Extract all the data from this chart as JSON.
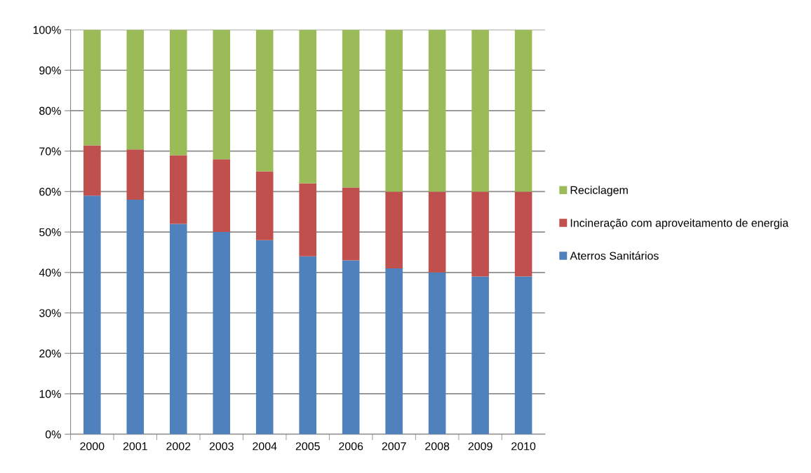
{
  "chart_data": {
    "type": "bar",
    "stacked": true,
    "categories": [
      "2000",
      "2001",
      "2002",
      "2003",
      "2004",
      "2005",
      "2006",
      "2007",
      "2008",
      "2009",
      "2010"
    ],
    "series": [
      {
        "name": "Aterros Sanitários",
        "color": "#4f81bd",
        "values": [
          59,
          58,
          52,
          50,
          48,
          44,
          43,
          41,
          40,
          39,
          39
        ]
      },
      {
        "name": "Incineração com aproveitamento de energia",
        "color": "#c0504d",
        "values": [
          12.4,
          12.4,
          17,
          18,
          17,
          18,
          18,
          19,
          20,
          21,
          21
        ]
      },
      {
        "name": "Reciclagem",
        "color": "#9bbb59",
        "values": [
          28.6,
          29.6,
          31,
          32,
          35,
          38,
          39,
          40,
          40,
          40,
          40
        ]
      }
    ],
    "ylim": [
      0,
      100
    ],
    "yticks": [
      {
        "value": 0,
        "label": "0%"
      },
      {
        "value": 10,
        "label": "10%"
      },
      {
        "value": 20,
        "label": "20%"
      },
      {
        "value": 30,
        "label": "30%"
      },
      {
        "value": 40,
        "label": "40%"
      },
      {
        "value": 50,
        "label": "50%"
      },
      {
        "value": 60,
        "label": "60%"
      },
      {
        "value": 70,
        "label": "70%"
      },
      {
        "value": 80,
        "label": "80%"
      },
      {
        "value": 90,
        "label": "90%"
      },
      {
        "value": 100,
        "label": "100%"
      }
    ],
    "grid": "y",
    "legend": "right"
  }
}
